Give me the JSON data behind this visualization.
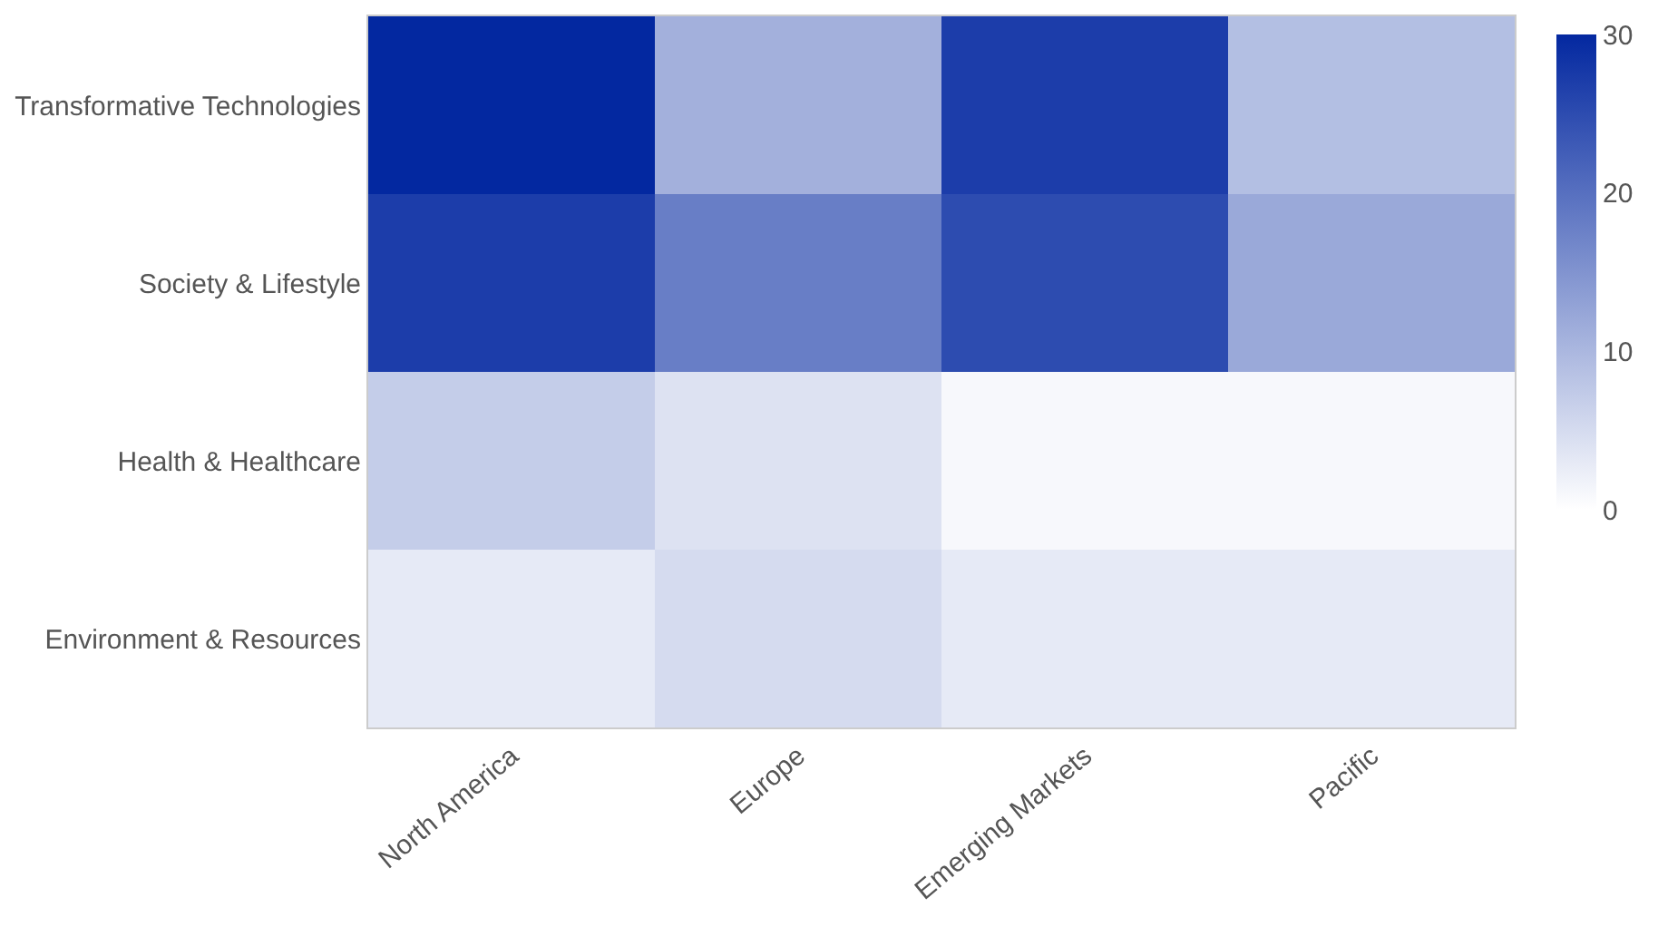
{
  "chart_data": {
    "type": "heatmap",
    "categories": [
      "North America",
      "Europe",
      "Emerging Markets",
      "Pacific"
    ],
    "y_categories": [
      "Transformative Technologies",
      "Society & Lifestyle",
      "Health & Healthcare",
      "Environment & Resources"
    ],
    "cells": [
      [
        30,
        11,
        27,
        9
      ],
      [
        27,
        18,
        25,
        12
      ],
      [
        7,
        4,
        1,
        1
      ],
      [
        3,
        5,
        3,
        3
      ]
    ],
    "clim": [
      0,
      30
    ],
    "cticks": [
      0,
      10,
      20,
      30
    ]
  }
}
